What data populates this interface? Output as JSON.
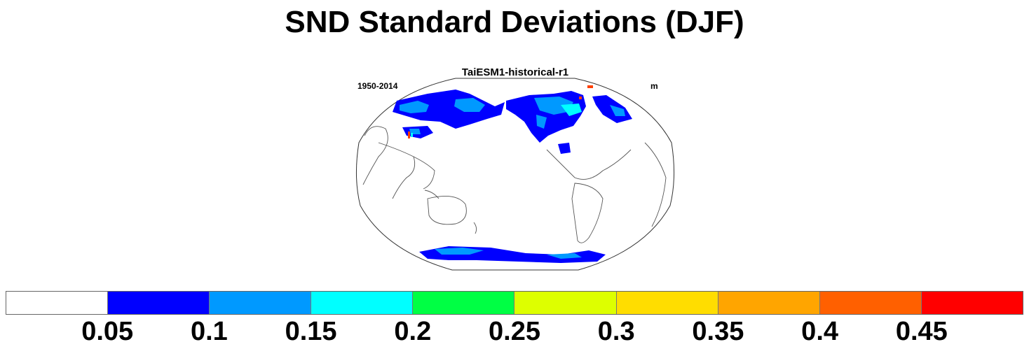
{
  "title": "SND Standard Deviations (DJF)",
  "panel": {
    "title": "TaiESM1-historical-r1",
    "left_label": "1950-2014",
    "right_label": "m",
    "projection": "robinson",
    "center_longitude": 180
  },
  "colorbar": {
    "colors": [
      "#ffffff",
      "#0000ff",
      "#0099ff",
      "#00ffff",
      "#00ff44",
      "#ddff00",
      "#ffdd00",
      "#ffa500",
      "#ff6000",
      "#ff0000"
    ],
    "labels": [
      "0.05",
      "0.1",
      "0.15",
      "0.2",
      "0.25",
      "0.3",
      "0.35",
      "0.4",
      "0.45"
    ],
    "boundaries": [
      0.05,
      0.1,
      0.15,
      0.2,
      0.25,
      0.3,
      0.35,
      0.4,
      0.45
    ]
  },
  "map_colors": {
    "land_outline": "#555555",
    "low": "#0000ff",
    "medium": "#0099ff",
    "high": "#00ffff",
    "peak": "#ff4000"
  }
}
